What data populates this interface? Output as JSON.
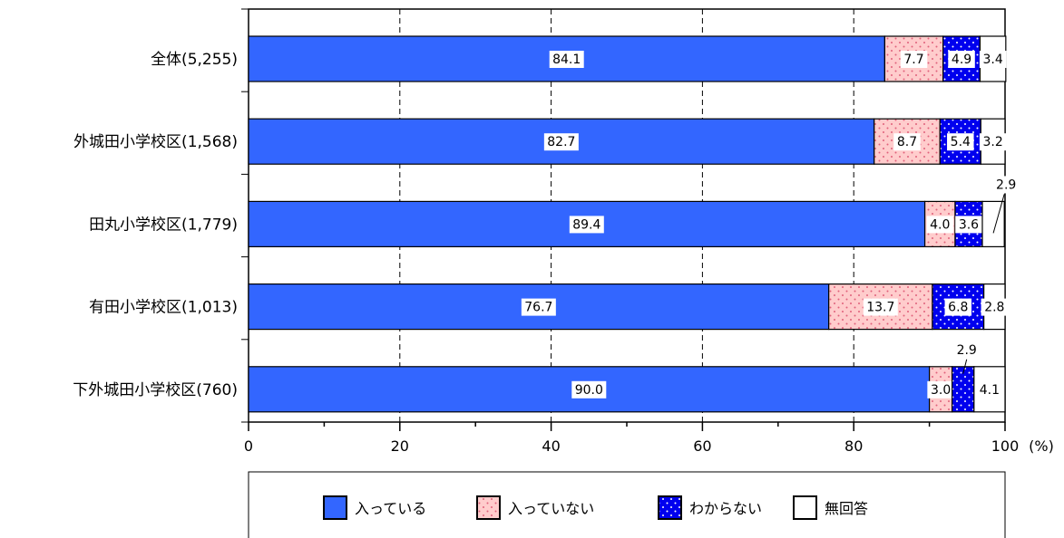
{
  "chart_data": {
    "type": "bar",
    "orientation": "horizontal",
    "stacked": true,
    "categories": [
      "全体(5,255)",
      "外城田小学校区(1,568)",
      "田丸小学校区(1,779)",
      "有田小学校区(1,013)",
      "下外城田小学校区(760)"
    ],
    "series": [
      {
        "name": "入っている",
        "color": "#3366ff",
        "pattern": "solid",
        "values": [
          84.1,
          82.7,
          89.4,
          76.7,
          90.0
        ],
        "labels": [
          "84.1",
          "82.7",
          "89.4",
          "76.7",
          "90.0"
        ]
      },
      {
        "name": "入っていない",
        "color": "#ffcccc",
        "pattern": "dots-red",
        "values": [
          7.7,
          8.7,
          4.0,
          13.7,
          3.0
        ],
        "labels": [
          "7.7",
          "8.7",
          "4.0",
          "13.7",
          "3.0"
        ]
      },
      {
        "name": "わからない",
        "color": "#0000ee",
        "pattern": "dots-white",
        "values": [
          4.9,
          5.4,
          3.6,
          6.8,
          2.9
        ],
        "labels": [
          "4.9",
          "5.4",
          "3.6",
          "6.8",
          "2.9"
        ]
      },
      {
        "name": "無回答",
        "color": "#ffffff",
        "pattern": "none",
        "values": [
          3.4,
          3.2,
          2.9,
          2.8,
          4.1
        ],
        "labels": [
          "3.4",
          "3.2",
          "2.9",
          "2.8",
          "4.1"
        ]
      }
    ],
    "xlim": [
      0,
      100
    ],
    "xticks": [
      "0",
      "20",
      "40",
      "60",
      "80",
      "100"
    ],
    "unit": "(%)",
    "grid": "vertical-dashed",
    "legend": "bottom"
  }
}
